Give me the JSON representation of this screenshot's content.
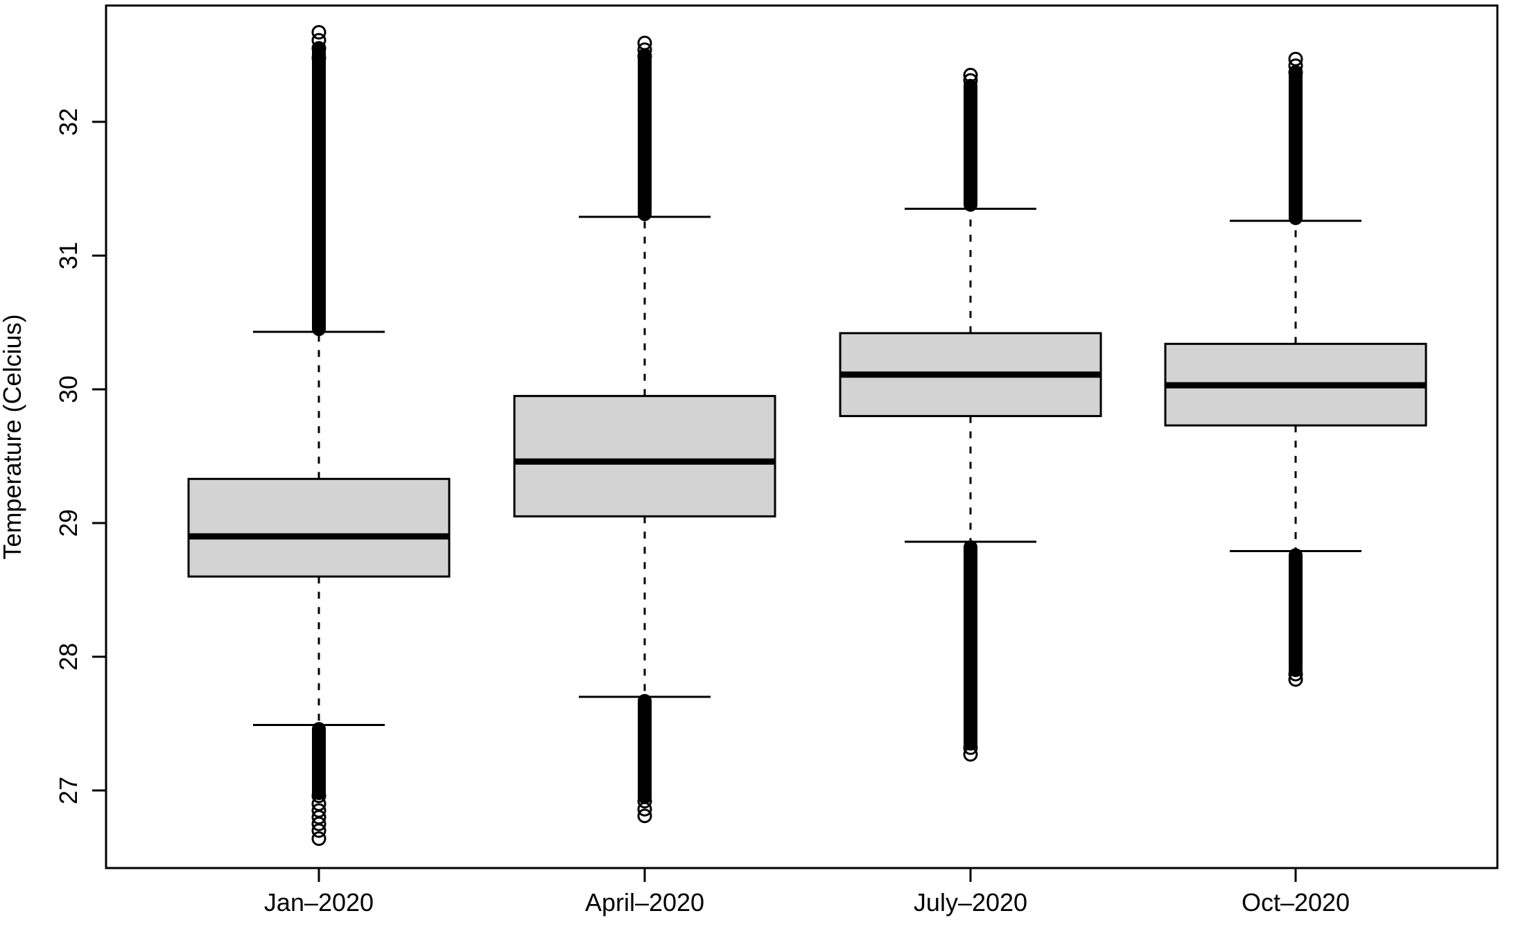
{
  "figure": {
    "background": "#ffffff",
    "foreground": "#000000",
    "box_fill": "#d3d3d3"
  },
  "chart_data": {
    "type": "boxplot",
    "title": "",
    "xlabel": "",
    "ylabel": "Temperature (Celcius)",
    "grid": false,
    "legend": "none",
    "ylim": [
      26.42,
      32.87
    ],
    "y_ticks": [
      27,
      28,
      29,
      30,
      31,
      32
    ],
    "categories": [
      "Jan–2020",
      "April–2020",
      "July–2020",
      "Oct–2020"
    ],
    "series": [
      {
        "label": "Jan–2020",
        "q1": 28.6,
        "median": 28.9,
        "q3": 29.33,
        "whisker_low": 27.49,
        "whisker_high": 30.43,
        "outliers_high_dense": [
          30.45,
          32.55
        ],
        "outliers_high_circles": [
          32.67,
          32.61,
          32.55,
          32.48
        ],
        "outliers_low_dense": [
          26.98,
          27.46
        ],
        "outliers_low_circles": [
          26.96,
          26.9,
          26.85,
          26.8,
          26.75,
          26.7,
          26.64
        ]
      },
      {
        "label": "April–2020",
        "q1": 29.05,
        "median": 29.46,
        "q3": 29.95,
        "whisker_low": 27.7,
        "whisker_high": 31.29,
        "outliers_high_dense": [
          31.31,
          32.5
        ],
        "outliers_high_circles": [
          32.59,
          32.54,
          32.49
        ],
        "outliers_low_dense": [
          26.95,
          27.67
        ],
        "outliers_low_circles": [
          26.92,
          26.86,
          26.81
        ]
      },
      {
        "label": "July–2020",
        "q1": 29.8,
        "median": 30.11,
        "q3": 30.42,
        "whisker_low": 28.86,
        "whisker_high": 31.35,
        "outliers_high_dense": [
          31.38,
          32.27
        ],
        "outliers_high_circles": [
          32.35,
          32.31
        ],
        "outliers_low_dense": [
          27.35,
          28.82
        ],
        "outliers_low_circles": [
          27.32,
          27.27
        ]
      },
      {
        "label": "Oct–2020",
        "q1": 29.73,
        "median": 30.03,
        "q3": 30.34,
        "whisker_low": 28.79,
        "whisker_high": 31.26,
        "outliers_high_dense": [
          31.28,
          32.36
        ],
        "outliers_high_circles": [
          32.47,
          32.42,
          32.37
        ],
        "outliers_low_dense": [
          27.9,
          28.76
        ],
        "outliers_low_circles": [
          27.87,
          27.83
        ]
      }
    ]
  }
}
